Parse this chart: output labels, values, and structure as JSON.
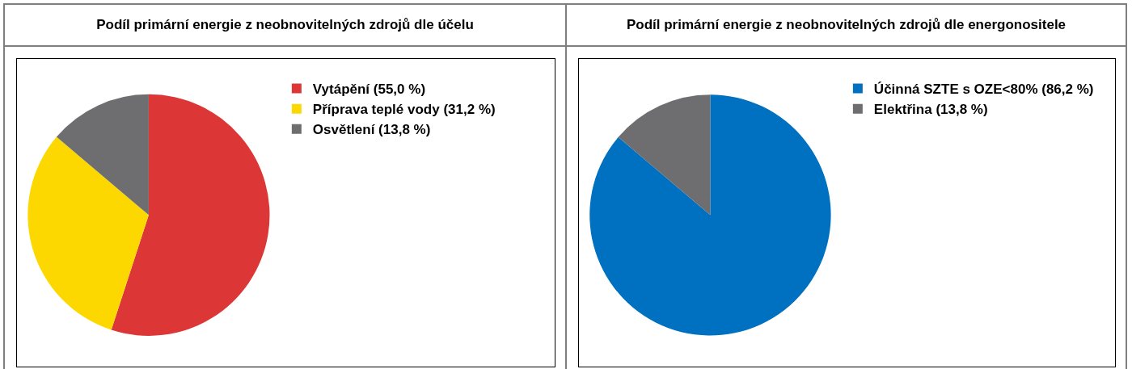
{
  "chart_data": [
    {
      "type": "pie",
      "title": "Podíl primární energie z neobnovitelných zdrojů dle účelu",
      "categories": [
        "Vytápění (55,0 %)",
        "Příprava teplé vody (31,2 %)",
        "Osvětlení (13,8 %)"
      ],
      "values": [
        55.0,
        31.2,
        13.8
      ],
      "colors": [
        "#dc3636",
        "#fcd800",
        "#6e6e70"
      ],
      "legend": "top right"
    },
    {
      "type": "pie",
      "title": "Podíl primární energie z neobnovitelných zdrojů dle energonositele",
      "categories": [
        "Účinná SZTE s OZE<80% (86,2 %)",
        "Elektřina (13,8 %)"
      ],
      "values": [
        86.2,
        13.8
      ],
      "colors": [
        "#0070c0",
        "#6e6e70"
      ],
      "legend": "top right"
    }
  ]
}
